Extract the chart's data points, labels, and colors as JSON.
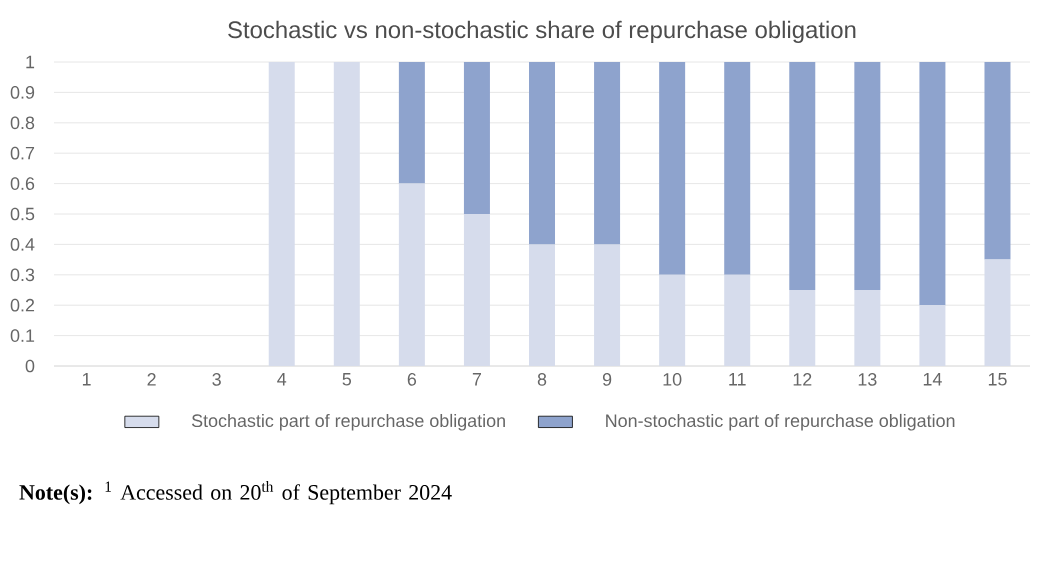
{
  "chart_data": {
    "type": "bar",
    "stacked": true,
    "title": "Stochastic vs non-stochastic share of repurchase obligation",
    "categories": [
      "1",
      "2",
      "3",
      "4",
      "5",
      "6",
      "7",
      "8",
      "9",
      "10",
      "11",
      "12",
      "13",
      "14",
      "15"
    ],
    "series": [
      {
        "name": "Stochastic part of repurchase obligation",
        "color": "#d6dcec",
        "values": [
          null,
          null,
          null,
          1,
          1,
          0.6,
          0.5,
          0.4,
          0.4,
          0.3,
          0.3,
          0.25,
          0.25,
          0.2,
          0.35
        ]
      },
      {
        "name": "Non-stochastic part of repurchase obligation",
        "color": "#8ea3cd",
        "values": [
          null,
          null,
          null,
          0,
          0,
          0.4,
          0.5,
          0.6,
          0.6,
          0.7,
          0.7,
          0.75,
          0.75,
          0.8,
          0.65
        ]
      }
    ],
    "ylim": [
      0,
      1
    ],
    "yticks": [
      0,
      0.1,
      0.2,
      0.3,
      0.4,
      0.5,
      0.6,
      0.7,
      0.8,
      0.9,
      1
    ],
    "grid": "y",
    "legend": "bottom",
    "annotations": [
      "**Note(s):** $^{1}$ Accessed on 20$^{th}$ of September 2024"
    ]
  }
}
